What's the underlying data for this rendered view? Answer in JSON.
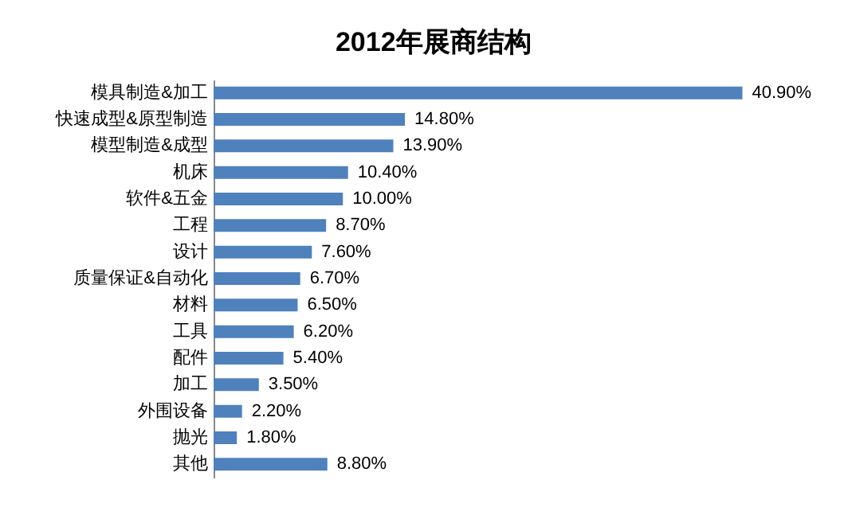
{
  "chart_data": {
    "type": "bar",
    "orientation": "horizontal",
    "title": "2012年展商结构",
    "categories": [
      "模具制造&加工",
      "快速成型&原型制造",
      "模型制造&成型",
      "机床",
      "软件&五金",
      "工程",
      "设计",
      "质量保证&自动化",
      "材料",
      "工具",
      "配件",
      "加工",
      "外围设备",
      "抛光",
      "其他"
    ],
    "values": [
      40.9,
      14.8,
      13.9,
      10.4,
      10.0,
      8.7,
      7.6,
      6.7,
      6.5,
      6.2,
      5.4,
      3.5,
      2.2,
      1.8,
      8.8
    ],
    "value_labels": [
      "40.90%",
      "14.80%",
      "13.90%",
      "10.40%",
      "10.00%",
      "8.70%",
      "7.60%",
      "6.70%",
      "6.50%",
      "6.20%",
      "5.40%",
      "3.50%",
      "2.20%",
      "1.80%",
      "8.80%"
    ],
    "color": "#4f81bd",
    "grid": false
  }
}
